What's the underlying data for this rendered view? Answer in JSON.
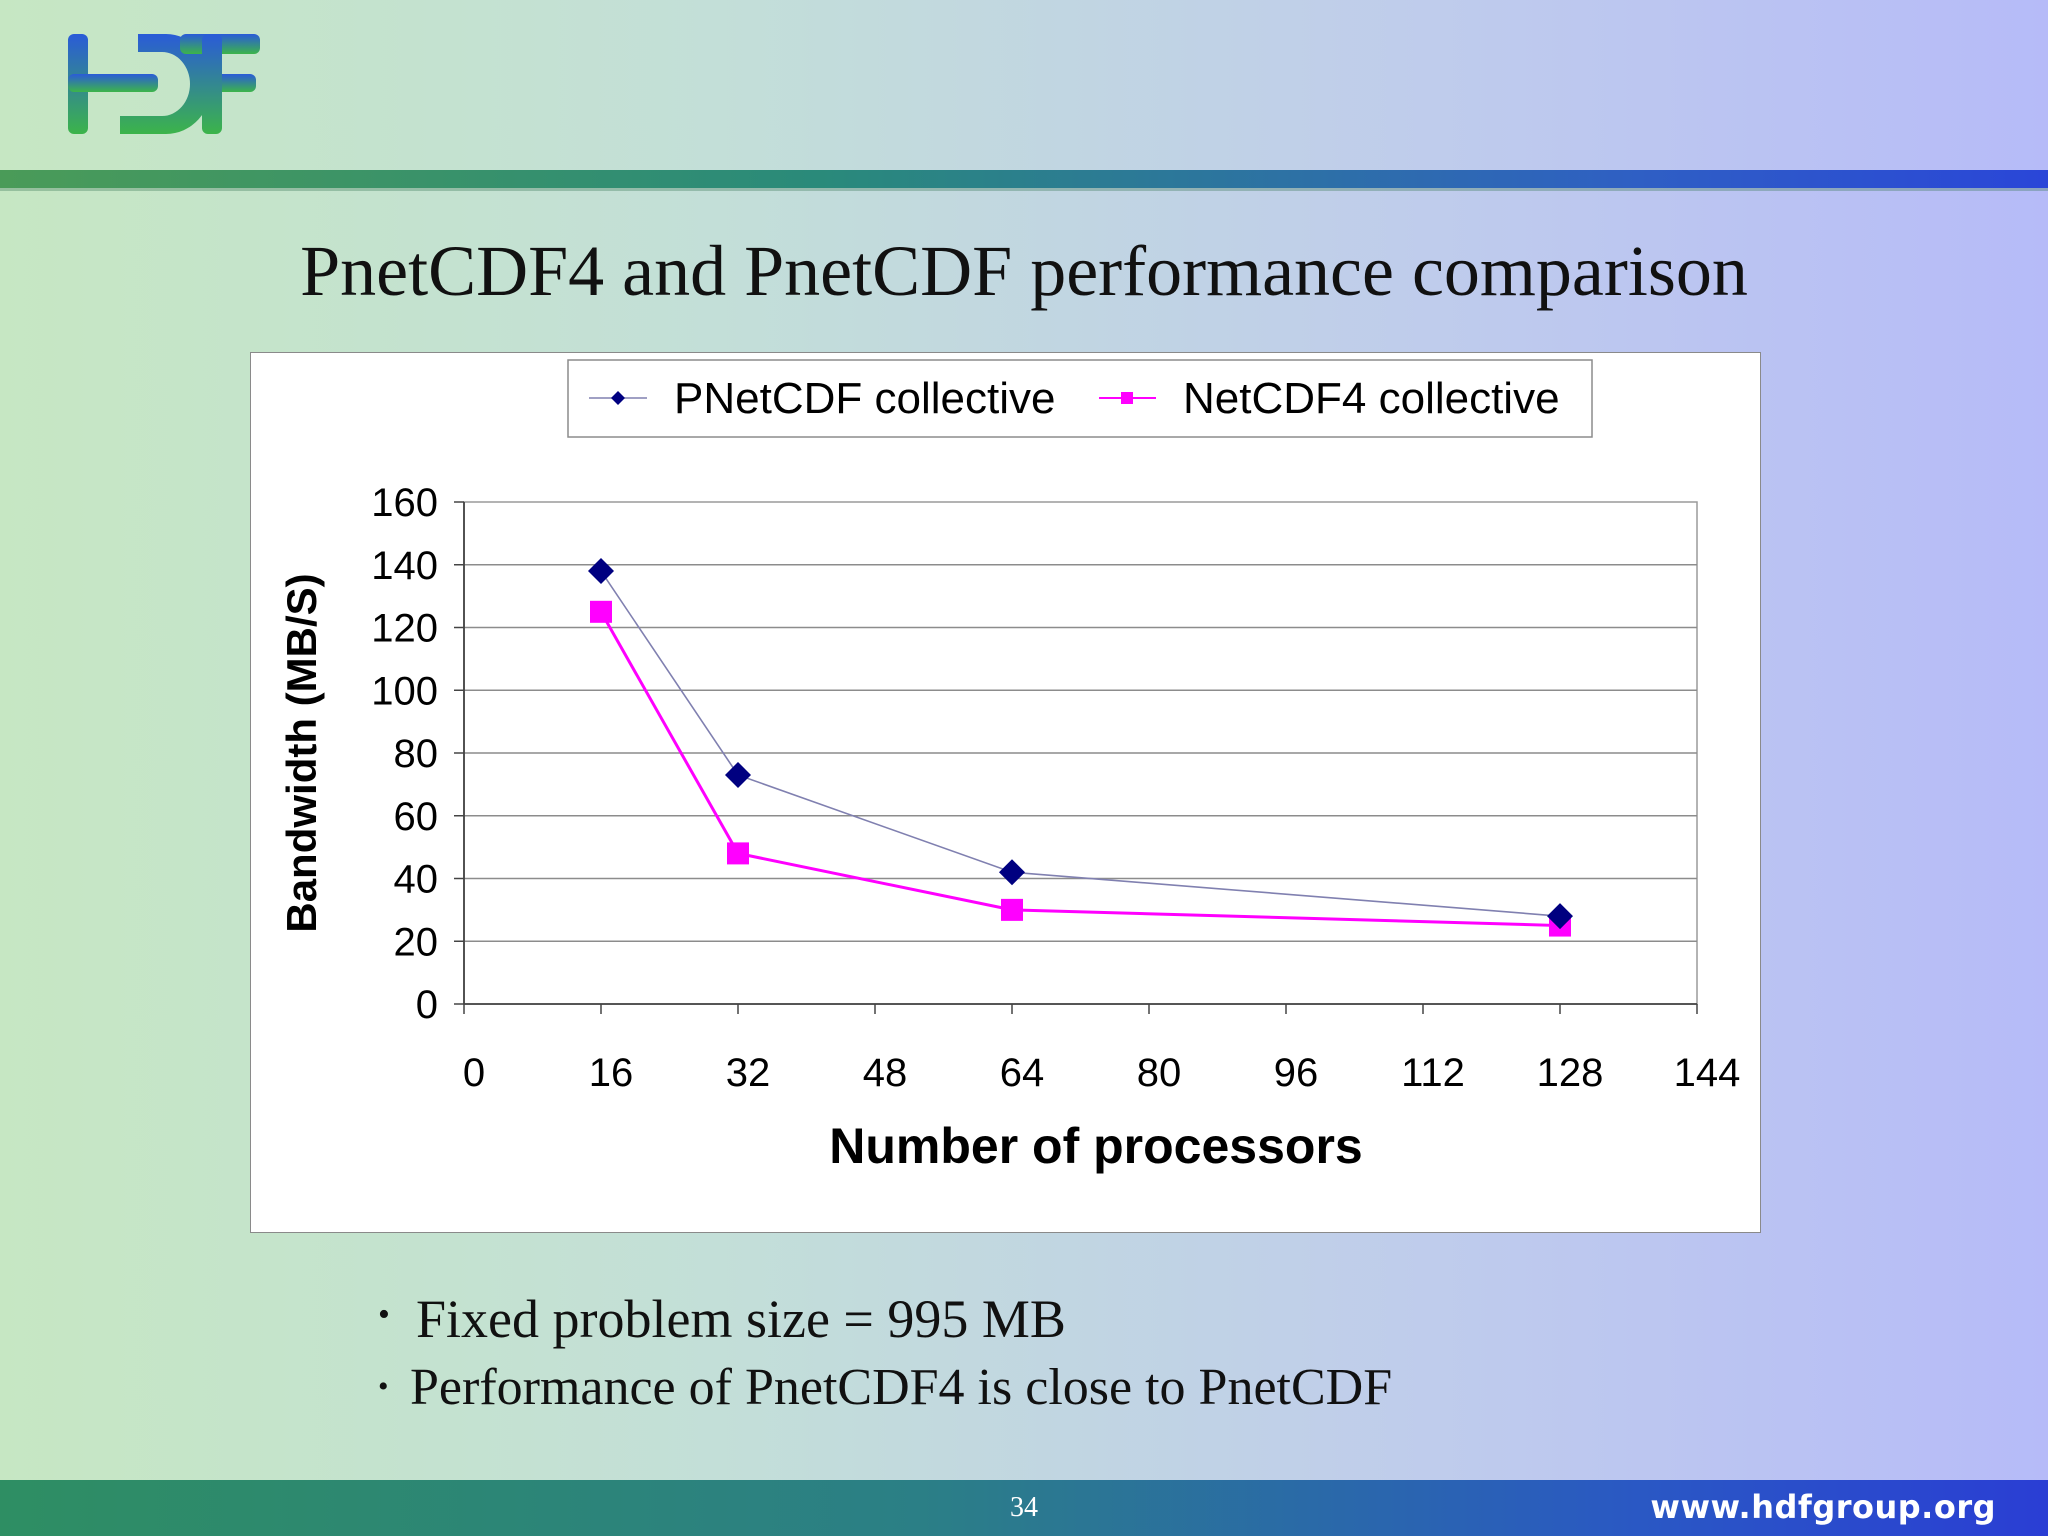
{
  "slide": {
    "logo_text": "HDF",
    "title": "PnetCDF4 and PnetCDF performance comparison",
    "bullets": [
      "Fixed problem size = 995 MB",
      "Performance of PnetCDF4 is close to PnetCDF"
    ],
    "page_number": "34",
    "website": "www.hdfgroup.org"
  },
  "colors": {
    "series_pnetcdf": "#000080",
    "series_netcdf4": "#ff00ff",
    "pnetcdf_line": "#8080b0"
  },
  "chart_data": {
    "type": "scatter",
    "title": "",
    "xlabel": "Number of processors",
    "ylabel": "Bandwidth (MB/S)",
    "xlim": [
      0,
      144
    ],
    "ylim": [
      0,
      160
    ],
    "xticks": [
      0,
      16,
      32,
      48,
      64,
      80,
      96,
      112,
      128,
      144
    ],
    "yticks": [
      0,
      20,
      40,
      60,
      80,
      100,
      120,
      140,
      160
    ],
    "grid": true,
    "legend": "top",
    "series": [
      {
        "name": "PNetCDF collective",
        "marker": "diamond",
        "x": [
          16,
          32,
          64,
          128
        ],
        "y": [
          138,
          73,
          42,
          28
        ]
      },
      {
        "name": "NetCDF4 collective",
        "marker": "square",
        "x": [
          16,
          32,
          64,
          128
        ],
        "y": [
          125,
          48,
          30,
          25
        ]
      }
    ]
  }
}
